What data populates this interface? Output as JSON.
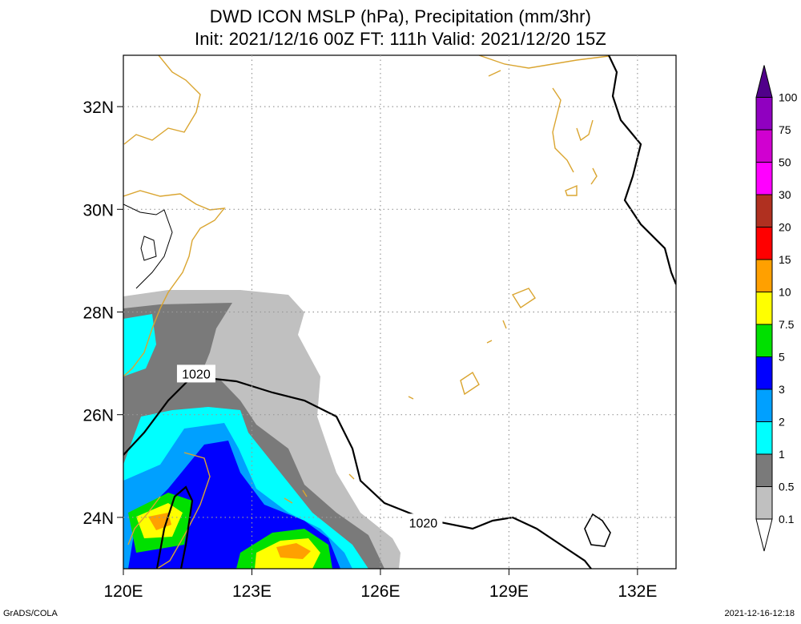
{
  "title": {
    "line1": "DWD ICON MSLP (hPa), Precipitation (mm/3hr)",
    "line2": "Init: 2021/12/16 00Z  FT: 111h  Valid: 2021/12/20 15Z"
  },
  "map": {
    "lon_range": [
      120,
      132.9
    ],
    "lat_range": [
      23.0,
      33.0
    ],
    "lon_ticks": [
      {
        "value": 120,
        "label": "120E"
      },
      {
        "value": 123,
        "label": "123E"
      },
      {
        "value": 126,
        "label": "126E"
      },
      {
        "value": 129,
        "label": "129E"
      },
      {
        "value": 132,
        "label": "132E"
      }
    ],
    "lat_ticks": [
      {
        "value": 24,
        "label": "24N"
      },
      {
        "value": 26,
        "label": "26N"
      },
      {
        "value": 28,
        "label": "28N"
      },
      {
        "value": 30,
        "label": "30N"
      },
      {
        "value": 32,
        "label": "32N"
      }
    ],
    "grid": true,
    "isobar_labels": [
      {
        "text": "1020",
        "lon": 121.7,
        "lat": 26.8
      },
      {
        "text": "1020",
        "lon": 127.0,
        "lat": 23.9
      }
    ]
  },
  "colorbar": {
    "levels": [
      "0.1",
      "0.5",
      "1",
      "2",
      "3",
      "5",
      "7.5",
      "10",
      "15",
      "20",
      "30",
      "50",
      "75",
      "100"
    ],
    "colors": [
      "#ffffff",
      "#c0c0c0",
      "#7a7a7a",
      "#00ffff",
      "#00a0ff",
      "#0000ff",
      "#00e000",
      "#ffff00",
      "#ffa000",
      "#ff0000",
      "#b03020",
      "#ff00ff",
      "#d000d0",
      "#9000c0",
      "#50008a"
    ]
  },
  "colors": {
    "coastline": "#daa530",
    "isobar": "#000000",
    "grid": "#999999"
  },
  "footer": {
    "left": "GrADS/COLA",
    "right": "2021-12-16-12:18"
  }
}
